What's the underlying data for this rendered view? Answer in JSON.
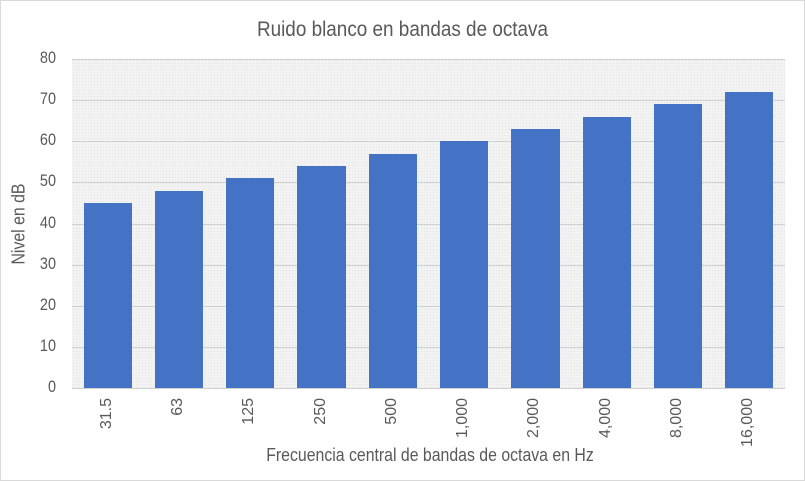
{
  "chart_data": {
    "type": "bar",
    "title": "Ruido blanco en bandas de octava",
    "xlabel": "Frecuencia central de bandas de octava en Hz",
    "ylabel": "Nivel en dB",
    "categories": [
      "31.5",
      "63",
      "125",
      "250",
      "500",
      "1,000",
      "2,000",
      "4,000",
      "8,000",
      "16,000"
    ],
    "values": [
      45,
      48,
      51,
      54,
      57,
      60,
      63,
      66,
      69,
      72
    ],
    "ylim": [
      0,
      80
    ],
    "yticks": [
      "0",
      "10",
      "20",
      "30",
      "40",
      "50",
      "60",
      "70",
      "80"
    ],
    "grid": true,
    "legend": null,
    "bar_color": "#4472c4"
  }
}
